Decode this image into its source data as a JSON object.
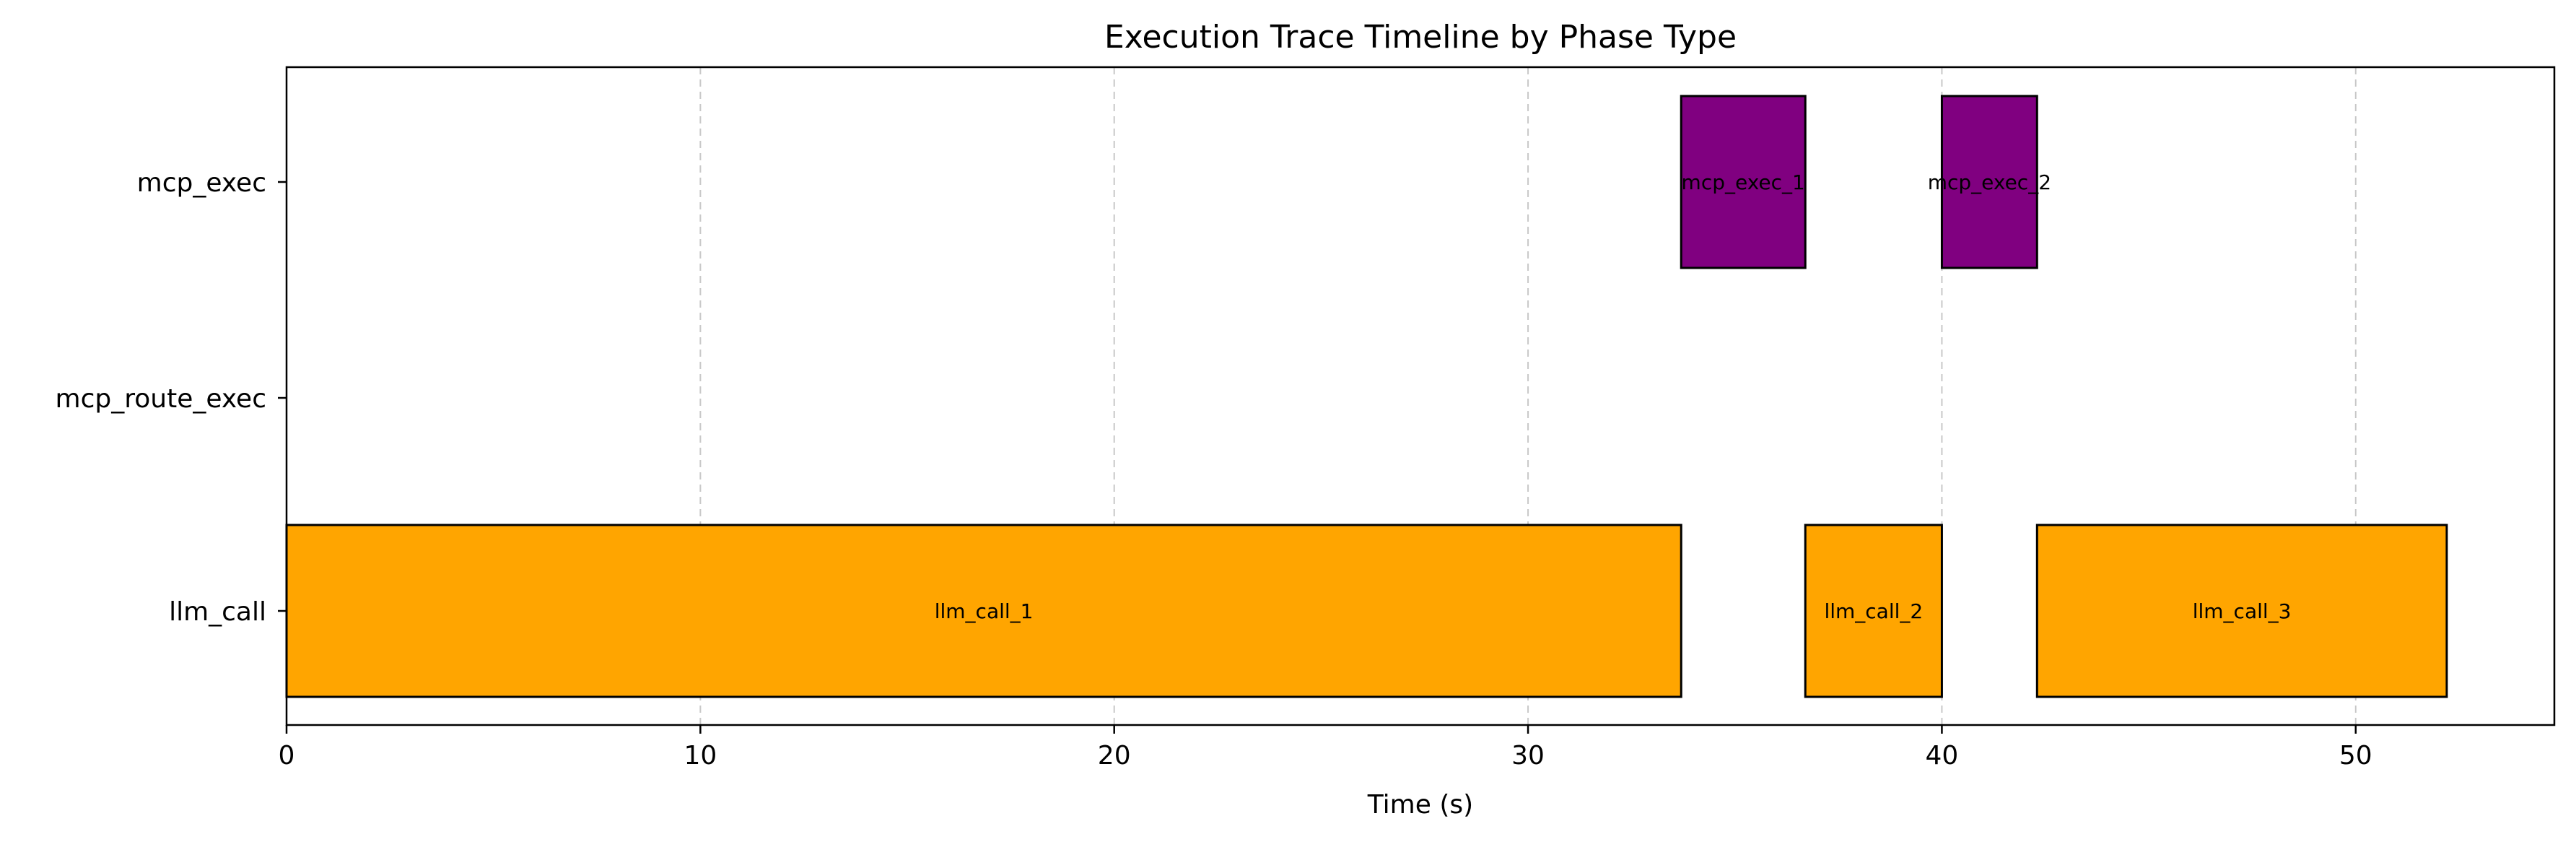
{
  "chart_data": {
    "type": "timeline",
    "title": "Execution Trace Timeline by Phase Type",
    "xlabel": "Time (s)",
    "ylabel": "",
    "xlim": [
      0,
      54.8
    ],
    "xticks": [
      0,
      10,
      20,
      30,
      40,
      50
    ],
    "grid": "vertical dashed",
    "categories": [
      "llm_call",
      "mcp_route_exec",
      "mcp_exec"
    ],
    "colors": {
      "llm_call": "#ffa500",
      "mcp_exec": "#800080",
      "edge": "#000000"
    },
    "bars": [
      {
        "label": "llm_call_1",
        "category": "llm_call",
        "start": 0.0,
        "end": 33.7
      },
      {
        "label": "mcp_exec_1",
        "category": "mcp_exec",
        "start": 33.7,
        "end": 36.7
      },
      {
        "label": "llm_call_2",
        "category": "llm_call",
        "start": 36.7,
        "end": 40.0
      },
      {
        "label": "mcp_exec_2",
        "category": "mcp_exec",
        "start": 40.0,
        "end": 42.3
      },
      {
        "label": "llm_call_3",
        "category": "llm_call",
        "start": 42.3,
        "end": 52.2
      }
    ]
  }
}
